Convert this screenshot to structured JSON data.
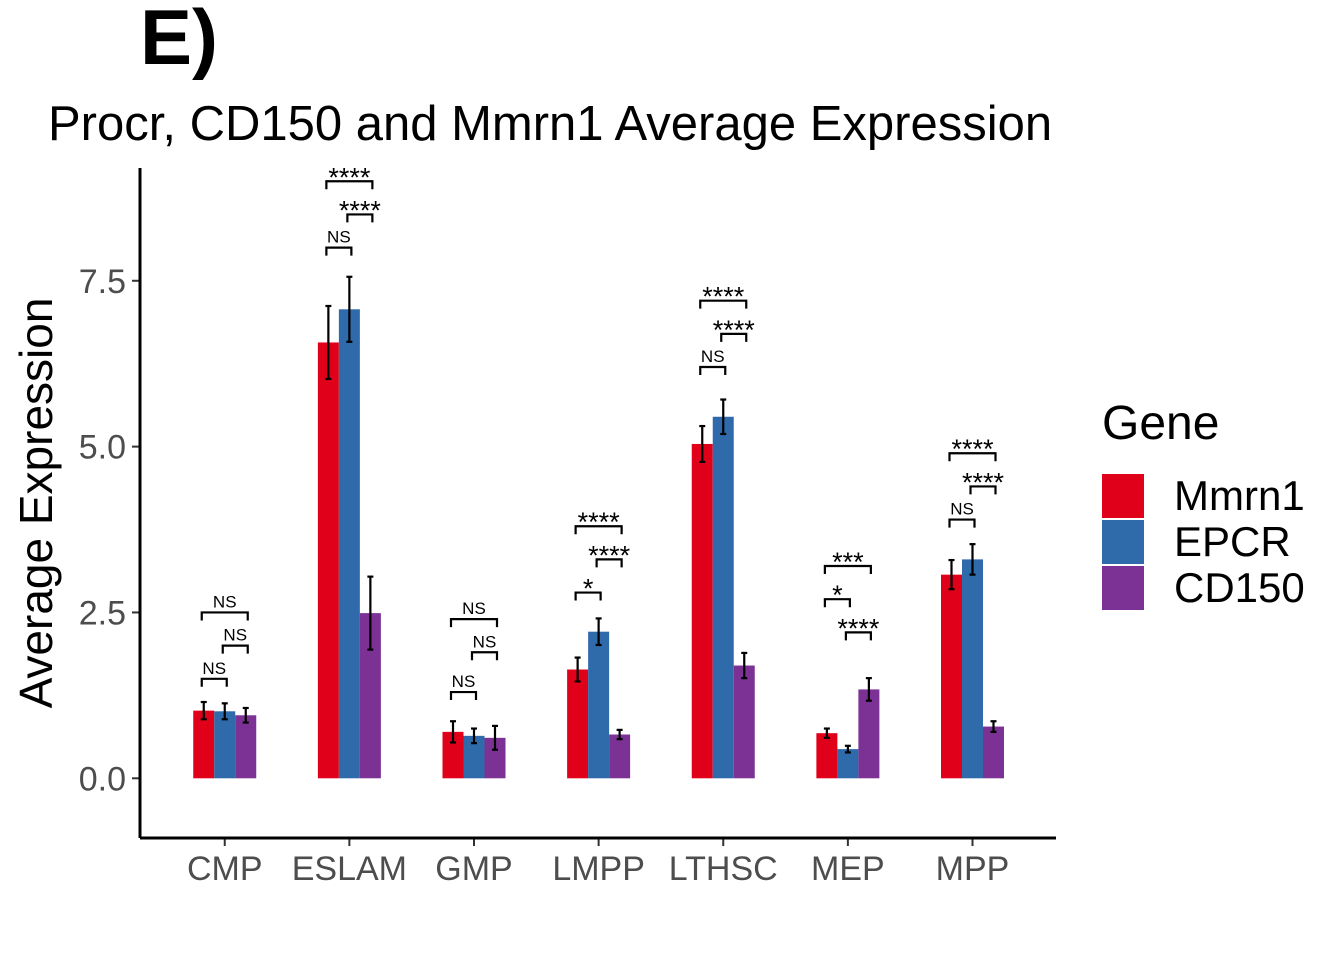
{
  "panel_label": "E)",
  "chart_data": {
    "type": "bar",
    "title": "Procr, CD150 and Mmrn1 Average Expression",
    "xlabel": "",
    "ylabel": "Average Expression",
    "ylim": [
      -0.9,
      9.2
    ],
    "yticks": [
      0.0,
      2.5,
      5.0,
      7.5
    ],
    "ytick_labels": [
      "0.0",
      "2.5",
      "5.0",
      "7.5"
    ],
    "grid": false,
    "legend_title": "Gene",
    "legend_position": "right",
    "categories": [
      "CMP",
      "ESLAM",
      "GMP",
      "LMPP",
      "LTHSC",
      "MEP",
      "MPP"
    ],
    "series": [
      {
        "name": "Mmrn1",
        "color": "#e00019",
        "values": [
          1.02,
          6.57,
          0.7,
          1.64,
          5.04,
          0.68,
          3.07
        ],
        "errors": [
          0.13,
          0.55,
          0.16,
          0.18,
          0.27,
          0.07,
          0.22
        ]
      },
      {
        "name": "EPCR",
        "color": "#2f6aaa",
        "values": [
          1.01,
          7.07,
          0.64,
          2.21,
          5.45,
          0.44,
          3.3
        ],
        "errors": [
          0.12,
          0.49,
          0.11,
          0.2,
          0.26,
          0.05,
          0.23
        ]
      },
      {
        "name": "CD150",
        "color": "#7b3294",
        "values": [
          0.95,
          2.49,
          0.61,
          0.66,
          1.7,
          1.34,
          0.78
        ],
        "errors": [
          0.11,
          0.55,
          0.18,
          0.07,
          0.19,
          0.17,
          0.08
        ]
      }
    ],
    "comparisons": [
      {
        "category": "CMP",
        "pairs": [
          {
            "from": "Mmrn1",
            "to": "EPCR",
            "y": 1.5,
            "label": "NS"
          },
          {
            "from": "EPCR",
            "to": "CD150",
            "y": 2.0,
            "label": "NS"
          },
          {
            "from": "Mmrn1",
            "to": "CD150",
            "y": 2.5,
            "label": "NS"
          }
        ]
      },
      {
        "category": "ESLAM",
        "pairs": [
          {
            "from": "Mmrn1",
            "to": "EPCR",
            "y": 8.0,
            "label": "NS"
          },
          {
            "from": "EPCR",
            "to": "CD150",
            "y": 8.5,
            "label": "****"
          },
          {
            "from": "Mmrn1",
            "to": "CD150",
            "y": 9.0,
            "label": "****"
          }
        ]
      },
      {
        "category": "GMP",
        "pairs": [
          {
            "from": "Mmrn1",
            "to": "EPCR",
            "y": 1.3,
            "label": "NS"
          },
          {
            "from": "EPCR",
            "to": "CD150",
            "y": 1.9,
            "label": "NS"
          },
          {
            "from": "Mmrn1",
            "to": "CD150",
            "y": 2.4,
            "label": "NS"
          }
        ]
      },
      {
        "category": "LMPP",
        "pairs": [
          {
            "from": "Mmrn1",
            "to": "EPCR",
            "y": 2.8,
            "label": "*"
          },
          {
            "from": "EPCR",
            "to": "CD150",
            "y": 3.3,
            "label": "****"
          },
          {
            "from": "Mmrn1",
            "to": "CD150",
            "y": 3.8,
            "label": "****"
          }
        ]
      },
      {
        "category": "LTHSC",
        "pairs": [
          {
            "from": "Mmrn1",
            "to": "EPCR",
            "y": 6.2,
            "label": "NS"
          },
          {
            "from": "EPCR",
            "to": "CD150",
            "y": 6.7,
            "label": "****"
          },
          {
            "from": "Mmrn1",
            "to": "CD150",
            "y": 7.2,
            "label": "****"
          }
        ]
      },
      {
        "category": "MEP",
        "pairs": [
          {
            "from": "Mmrn1",
            "to": "EPCR",
            "y": 2.7,
            "label": "*"
          },
          {
            "from": "EPCR",
            "to": "CD150",
            "y": 2.2,
            "label": "****"
          },
          {
            "from": "Mmrn1",
            "to": "CD150",
            "y": 3.2,
            "label": "***"
          }
        ]
      },
      {
        "category": "MPP",
        "pairs": [
          {
            "from": "Mmrn1",
            "to": "EPCR",
            "y": 3.9,
            "label": "NS"
          },
          {
            "from": "EPCR",
            "to": "CD150",
            "y": 4.4,
            "label": "****"
          },
          {
            "from": "Mmrn1",
            "to": "CD150",
            "y": 4.9,
            "label": "****"
          }
        ]
      }
    ]
  }
}
